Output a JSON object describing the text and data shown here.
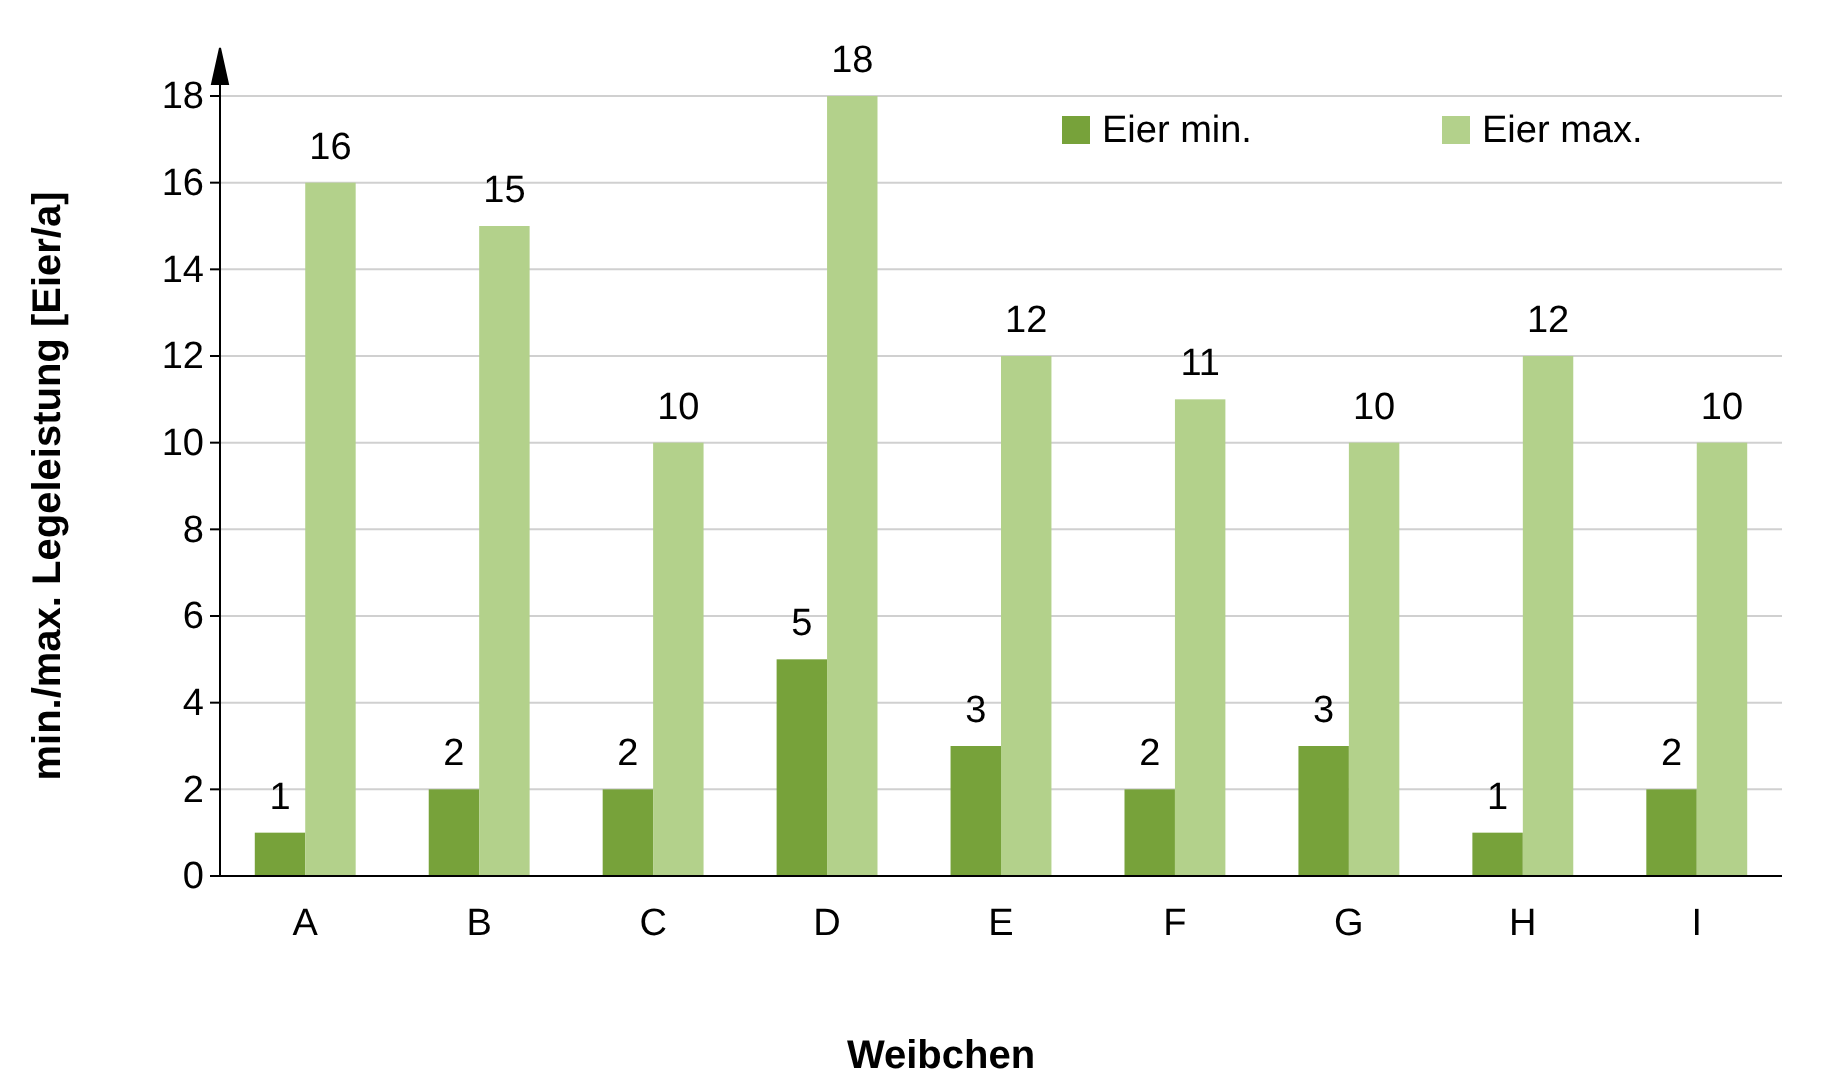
{
  "chart_data": {
    "type": "bar",
    "xlabel": "Weibchen",
    "ylabel": "min./max. Legeleistung [Eier/a]",
    "categories": [
      "A",
      "B",
      "C",
      "D",
      "E",
      "F",
      "G",
      "H",
      "I"
    ],
    "series": [
      {
        "name": "Eier min.",
        "color": "#77a23a",
        "values": [
          1,
          2,
          2,
          5,
          3,
          2,
          3,
          1,
          2
        ]
      },
      {
        "name": "Eier max.",
        "color": "#b3d18b",
        "values": [
          16,
          15,
          10,
          18,
          12,
          11,
          10,
          12,
          10
        ]
      }
    ],
    "ylim": [
      0,
      18
    ],
    "yticks": [
      0,
      2,
      4,
      6,
      8,
      10,
      12,
      14,
      16,
      18
    ],
    "grid": "y",
    "legend": "top right",
    "data_labels": true
  }
}
